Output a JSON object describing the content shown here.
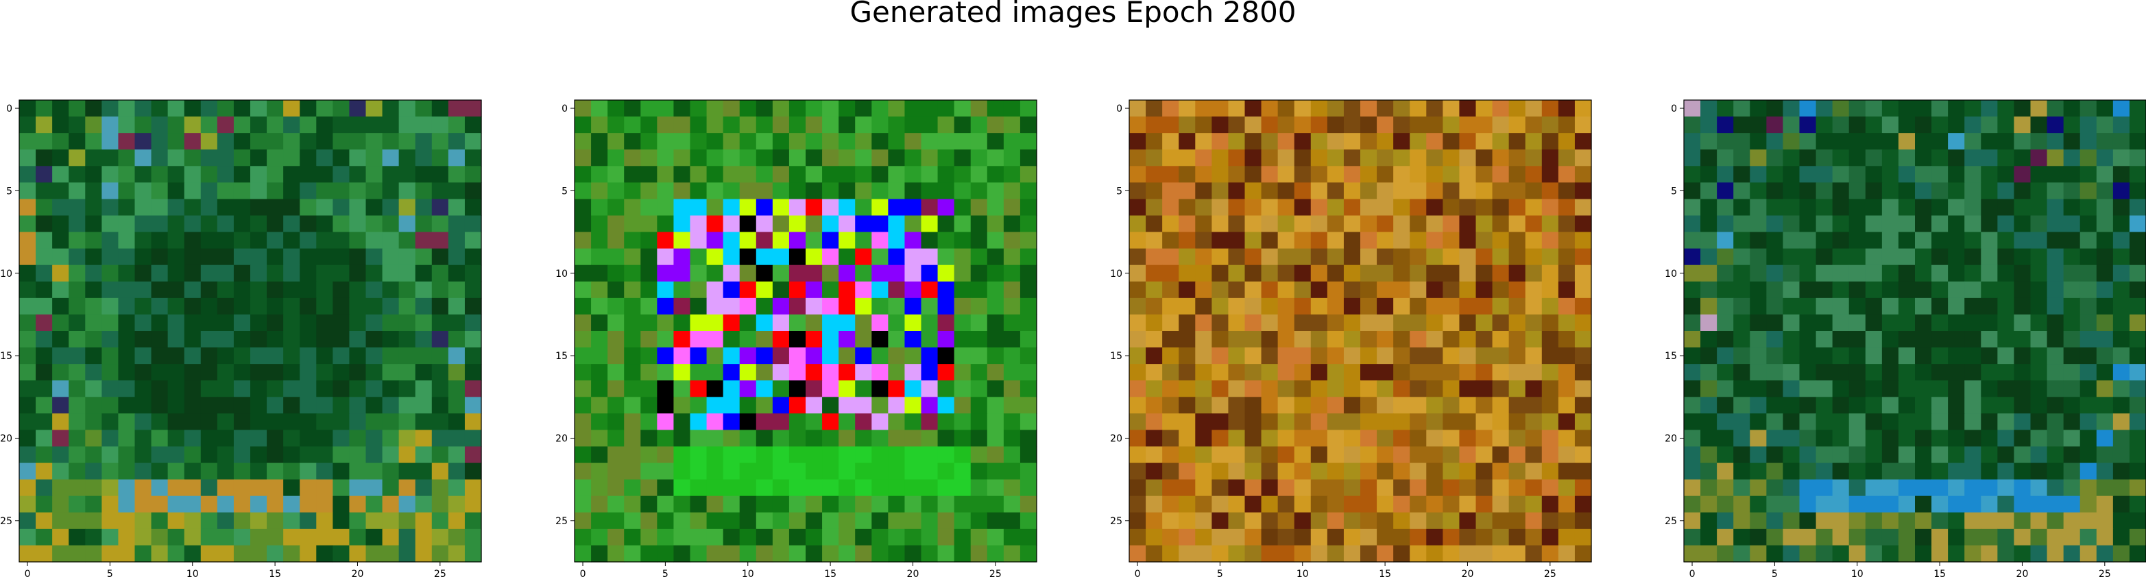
{
  "figure": {
    "title": "Generated images Epoch 2800"
  },
  "chart_data": [
    {
      "type": "heatmap",
      "rows": 28,
      "cols": 28,
      "xticks": [
        0,
        5,
        10,
        15,
        20,
        25
      ],
      "yticks": [
        0,
        5,
        10,
        15,
        20,
        25
      ],
      "xlim": [
        -0.5,
        27.5
      ],
      "ylim": [
        27.5,
        -0.5
      ],
      "palette": [
        "#0c5a22",
        "#064a1a",
        "#1f7a2e",
        "#2f8f3e",
        "#1a6b4a",
        "#3b9b5a",
        "#0a3d16",
        "#5c8f2a",
        "#8fa32a",
        "#b89e1e",
        "#c28f2a",
        "#4aa0b8",
        "#2a2a5e",
        "#7a2a4a"
      ],
      "pattern": "edge-rich-green-center-dark"
    },
    {
      "type": "heatmap",
      "rows": 28,
      "cols": 28,
      "xticks": [
        0,
        5,
        10,
        15,
        20,
        25
      ],
      "yticks": [
        0,
        5,
        10,
        15,
        20,
        25
      ],
      "xlim": [
        -0.5,
        27.5
      ],
      "ylim": [
        27.5,
        -0.5
      ],
      "palette": [
        "#1a8a1a",
        "#0f7a14",
        "#2aa02a",
        "#3fb03a",
        "#5a9a2a",
        "#6b8a2a",
        "#0a5a12",
        "#1fc01f",
        "#23d02a",
        "#0000ff",
        "#8a00ff",
        "#ff0000",
        "#00d0ff",
        "#c8ff00",
        "#ff6aff",
        "#000000",
        "#8a1a4a",
        "#e0a0ff"
      ],
      "pattern": "green-border-colorful-center"
    },
    {
      "type": "heatmap",
      "rows": 28,
      "cols": 28,
      "xticks": [
        0,
        5,
        10,
        15,
        20,
        25
      ],
      "yticks": [
        0,
        5,
        10,
        15,
        20,
        25
      ],
      "xlim": [
        -0.5,
        27.5
      ],
      "ylim": [
        27.5,
        -0.5
      ],
      "palette": [
        "#b8860b",
        "#c27a14",
        "#a06a10",
        "#d09a20",
        "#8a5a0a",
        "#7a4a10",
        "#c89a3a",
        "#9a7a1a",
        "#6a3a0a",
        "#d4a030",
        "#5a1a0a",
        "#b05a0a",
        "#a8901a",
        "#cf7a30"
      ],
      "pattern": "amber-noise"
    },
    {
      "type": "heatmap",
      "rows": 28,
      "cols": 28,
      "xticks": [
        0,
        5,
        10,
        15,
        20,
        25
      ],
      "yticks": [
        0,
        5,
        10,
        15,
        20,
        25
      ],
      "xlim": [
        -0.5,
        27.5
      ],
      "ylim": [
        27.5,
        -0.5
      ],
      "palette": [
        "#0c5a22",
        "#064a1a",
        "#1f6a3a",
        "#2f7f4e",
        "#0a3d16",
        "#1a6b5a",
        "#3b8b5a",
        "#4a7a2a",
        "#7a8a2a",
        "#b09a3a",
        "#3aa0c8",
        "#1a8ad0",
        "#0a0a7a",
        "#5a1a4a",
        "#c0a0c0"
      ],
      "pattern": "edge-rich-green-center-dark"
    }
  ]
}
